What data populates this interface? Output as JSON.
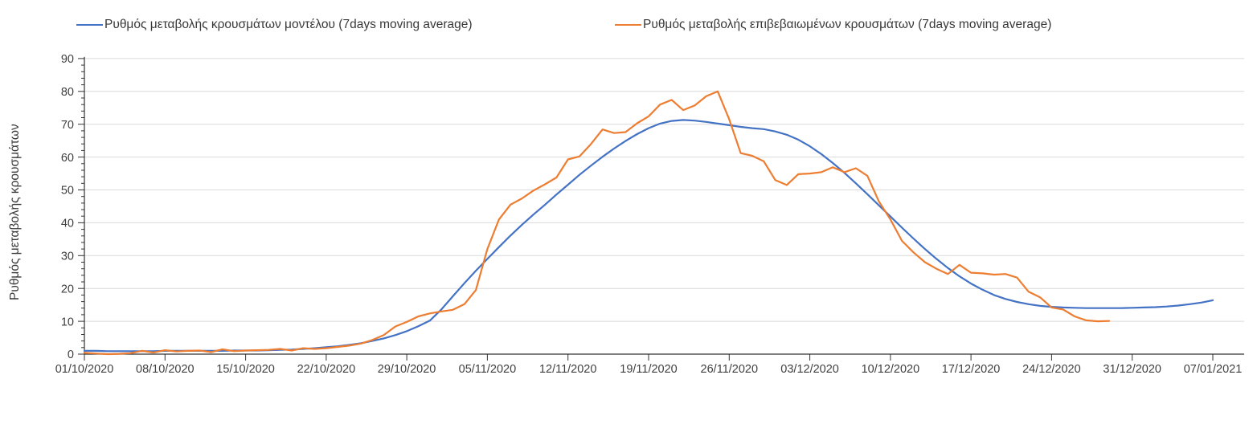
{
  "chart_data": {
    "type": "line",
    "title": "",
    "ylabel": "Ρυθμός μεταβολής κρουσμάτων",
    "xlabel": "",
    "ylim": [
      0,
      90
    ],
    "y_ticks": [
      0,
      10,
      20,
      30,
      40,
      50,
      60,
      70,
      80,
      90
    ],
    "y_minor_tick_step": 2,
    "grid": "horizontal",
    "legend_position": "top",
    "x_tick_interval_days": 7,
    "x_tick_labels": [
      "01/10/2020",
      "08/10/2020",
      "15/10/2020",
      "22/10/2020",
      "29/10/2020",
      "05/11/2020",
      "12/11/2020",
      "19/11/2020",
      "26/11/2020",
      "03/12/2020",
      "10/12/2020",
      "17/12/2020",
      "24/12/2020",
      "31/12/2020",
      "07/01/2021"
    ],
    "x_start_label": "01/10/2020",
    "series": [
      {
        "name": "Ρυθμός μεταβολής κρουσμάτων μοντέλου (7days moving average)",
        "color": "#4472c4",
        "start_day_index": 0,
        "values": [
          1.0,
          1.0,
          0.9,
          0.9,
          0.9,
          0.9,
          0.9,
          1.0,
          1.0,
          1.0,
          1.0,
          1.0,
          1.0,
          1.1,
          1.1,
          1.1,
          1.2,
          1.3,
          1.4,
          1.6,
          1.8,
          2.1,
          2.4,
          2.8,
          3.3,
          4.0,
          4.8,
          5.8,
          7.0,
          8.5,
          10.2,
          13.6,
          17.6,
          21.6,
          25.4,
          29.0,
          32.6,
          36.1,
          39.4,
          42.5,
          45.5,
          48.6,
          51.6,
          54.6,
          57.4,
          60.1,
          62.6,
          64.9,
          67.0,
          68.8,
          70.2,
          71.0,
          71.3,
          71.1,
          70.7,
          70.2,
          69.7,
          69.2,
          68.8,
          68.5,
          67.8,
          66.8,
          65.3,
          63.3,
          60.9,
          58.2,
          55.2,
          52.0,
          48.7,
          45.3,
          41.9,
          38.5,
          35.2,
          32.0,
          29.0,
          26.2,
          23.7,
          21.5,
          19.6,
          18.0,
          16.8,
          15.9,
          15.2,
          14.7,
          14.4,
          14.2,
          14.1,
          14.0,
          14.0,
          14.0,
          14.0,
          14.1,
          14.2,
          14.3,
          14.5,
          14.8,
          15.2,
          15.7,
          16.4
        ]
      },
      {
        "name": "Ρυθμός μεταβολής επιβεβαιωμένων κρουσμάτων (7days moving average)",
        "color": "#ed7d31",
        "start_day_index": 0,
        "values": [
          0.4,
          0.2,
          0.0,
          0.1,
          0.3,
          1.0,
          0.5,
          1.2,
          0.8,
          1.0,
          1.1,
          0.6,
          1.5,
          0.9,
          1.1,
          1.2,
          1.3,
          1.6,
          1.1,
          1.8,
          1.6,
          1.8,
          2.2,
          2.6,
          3.2,
          4.3,
          5.8,
          8.4,
          9.8,
          11.5,
          12.4,
          13.0,
          13.5,
          15.2,
          19.5,
          32.0,
          41.0,
          45.5,
          47.4,
          49.8,
          51.7,
          53.8,
          59.3,
          60.2,
          64.0,
          68.4,
          67.3,
          67.6,
          70.3,
          72.4,
          76.0,
          77.4,
          74.3,
          75.7,
          78.5,
          80.0,
          71.5,
          61.2,
          60.4,
          58.7,
          53.0,
          51.5,
          54.8,
          55.0,
          55.4,
          56.9,
          55.4,
          56.6,
          54.3,
          46.5,
          41.0,
          34.5,
          31.0,
          28.0,
          26.0,
          24.4,
          27.2,
          24.8,
          24.6,
          24.2,
          24.4,
          23.3,
          19.0,
          17.3,
          14.2,
          13.6,
          11.5,
          10.3,
          10.0,
          10.1
        ]
      }
    ],
    "colors": {
      "grid": "#d9d9d9",
      "axis": "#333333",
      "tick_text": "#3f3f3f",
      "legend_text": "#383838"
    }
  }
}
